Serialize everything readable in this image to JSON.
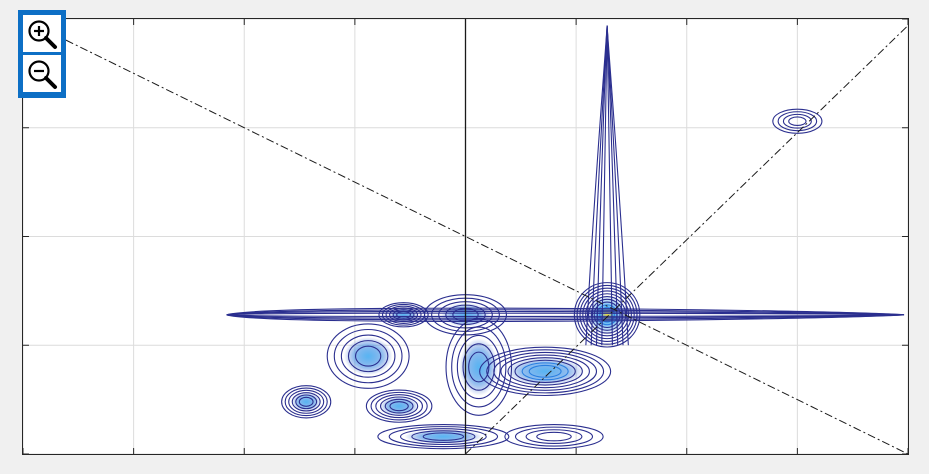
{
  "toolbar": {
    "zoom_in_icon": "zoom-in-icon",
    "zoom_out_icon": "zoom-out-icon",
    "accent": "#0d6fc5"
  },
  "chart_data": {
    "type": "contour",
    "xlim": [
      -1,
      1
    ],
    "ylim": [
      -1,
      1
    ],
    "grid": true,
    "colormap": [
      "#2b2f8f",
      "#2550c8",
      "#2a7fe0",
      "#3aa8f0",
      "#f2d21a"
    ],
    "x_ticks": [
      -1,
      -0.75,
      -0.5,
      -0.25,
      0,
      0.25,
      0.5,
      0.75,
      1
    ],
    "y_ticks": [
      -1,
      -0.5,
      0,
      0.5,
      1
    ],
    "reference_lines": [
      {
        "name": "diagonal",
        "from": [
          -1,
          1
        ],
        "to": [
          1,
          -1
        ]
      },
      {
        "name": "anti-diagonal",
        "from": [
          0,
          -1
        ],
        "to": [
          1,
          0.97
        ]
      }
    ],
    "peaks": [
      {
        "x": 0.32,
        "y": -0.36,
        "spread_x": 0.04,
        "spread_y": 0.08,
        "level": 10,
        "color": "#f2d21a"
      },
      {
        "x": 0.18,
        "y": -0.62,
        "spread_x": 0.08,
        "spread_y": 0.06,
        "level": 8,
        "color": "#2a7fe0"
      },
      {
        "x": -0.14,
        "y": -0.36,
        "spread_x": 0.03,
        "spread_y": 0.03,
        "level": 6,
        "color": "#2a7fe0"
      },
      {
        "x": -0.36,
        "y": -0.76,
        "spread_x": 0.03,
        "spread_y": 0.04,
        "level": 6,
        "color": "#2a7fe0"
      },
      {
        "x": -0.15,
        "y": -0.78,
        "spread_x": 0.04,
        "spread_y": 0.04,
        "level": 6,
        "color": "#2a7fe0"
      },
      {
        "x": 0.75,
        "y": 0.53,
        "spread_x": 0.03,
        "spread_y": 0.03,
        "level": 4,
        "color": "#2b2f8f"
      },
      {
        "x": 0.0,
        "y": -0.36,
        "spread_x": 0.05,
        "spread_y": 0.05,
        "level": 5,
        "color": "#2550c8"
      },
      {
        "x": -0.05,
        "y": -0.92,
        "spread_x": 0.08,
        "spread_y": 0.03,
        "level": 5,
        "color": "#2550c8"
      },
      {
        "x": 0.2,
        "y": -0.92,
        "spread_x": 0.06,
        "spread_y": 0.03,
        "level": 4,
        "color": "#2550c8"
      },
      {
        "x": -0.22,
        "y": -0.55,
        "spread_x": 0.05,
        "spread_y": 0.08,
        "level": 5,
        "color": "#2550c8"
      },
      {
        "x": 0.03,
        "y": -0.6,
        "spread_x": 0.04,
        "spread_y": 0.12,
        "level": 5,
        "color": "#2550c8"
      }
    ],
    "ridges": [
      {
        "name": "vertical-ridge",
        "x": 0.32,
        "y_from": -0.5,
        "y_to": 0.97,
        "width": 0.012
      },
      {
        "name": "horizontal-ridge",
        "y": -0.36,
        "x_from": -0.54,
        "x_to": 1.0,
        "width": 0.02
      }
    ]
  }
}
